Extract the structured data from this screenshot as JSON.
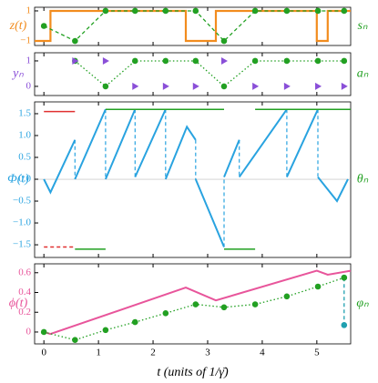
{
  "chart_data": [
    {
      "type": "line",
      "ylabel": "z(t)",
      "ylabel_color": "#f28c1e",
      "y2label": "sₙ",
      "y2label_color": "#22a022",
      "xlim": [
        -0.17,
        5.62
      ],
      "ylim": [
        -1.3,
        1.24
      ],
      "yticks": [
        1,
        {
          "value": -1,
          "label": "−1"
        }
      ],
      "series": [
        {
          "color": "#f28c1e",
          "style": "solid",
          "width": 2.2,
          "x": [
            -0.17,
            0.12,
            0.12,
            2.6,
            2.6,
            3.15,
            3.15,
            5.0,
            5.0,
            5.2,
            5.2,
            5.62
          ],
          "values": [
            -1,
            -1,
            1,
            1,
            -1,
            -1,
            1,
            1,
            -1,
            -1,
            1,
            1
          ]
        },
        {
          "color": "#22a022",
          "style": "dashed",
          "marker": "circle",
          "x": [
            0,
            0.57,
            1.13,
            1.67,
            2.23,
            2.78,
            3.3,
            3.87,
            4.45,
            5.02,
            5.5
          ],
          "values": [
            0,
            -1,
            1,
            1,
            1,
            1,
            -1,
            1,
            1,
            1,
            1
          ]
        }
      ]
    },
    {
      "type": "line",
      "ylabel": "yₙ",
      "ylabel_color": "#8a4fd8",
      "y2label": "aₙ",
      "y2label_color": "#22a022",
      "xlim": [
        -0.17,
        5.62
      ],
      "ylim": [
        -0.36,
        1.32
      ],
      "yticks": [
        1,
        0
      ],
      "series": [
        {
          "color": "#22a022",
          "style": "dotted",
          "marker": "circle",
          "x": [
            0.57,
            1.13,
            1.67,
            2.23,
            2.78,
            3.3,
            3.87,
            4.45,
            5.02,
            5.5
          ],
          "values": [
            1,
            0,
            1,
            1,
            1,
            0,
            1,
            1,
            1,
            1
          ]
        },
        {
          "color": "#8a4fd8",
          "style": "none",
          "marker": "triangle",
          "x": [
            0.57,
            1.13,
            1.67,
            2.23,
            2.78,
            3.3,
            3.87,
            4.45,
            5.02,
            5.5
          ],
          "values": [
            1,
            1,
            0,
            0,
            0,
            1,
            0,
            0,
            0,
            0
          ]
        }
      ]
    },
    {
      "type": "line",
      "ylabel": "Φ(t)",
      "ylabel_color": "#29a3e0",
      "y2label": "θₙ",
      "y2label_color": "#22a022",
      "xlim": [
        -0.17,
        5.62
      ],
      "ylim": [
        -1.79,
        1.77
      ],
      "yticks": [
        1.5,
        {
          "value": 1,
          "label": "1.0"
        },
        0.5,
        {
          "value": 0,
          "label": "0.0"
        },
        {
          "value": -0.5,
          "label": "−0.5"
        },
        {
          "value": -1,
          "label": "−1.0"
        },
        {
          "value": -1.5,
          "label": "−1.5"
        }
      ],
      "zero_line": true,
      "series": [
        {
          "color": "#29a3e0",
          "style": "solid",
          "width": 2,
          "x": [
            0,
            0.12,
            0.57,
            null,
            0.57,
            1.13,
            null,
            1.13,
            1.67,
            null,
            1.67,
            2.23,
            null,
            2.23,
            2.62,
            2.78,
            null,
            2.78,
            3.3,
            null,
            3.3,
            3.58,
            null,
            3.58,
            4.45,
            null,
            4.45,
            5.02,
            null,
            5.02,
            5.37,
            5.57
          ],
          "values": [
            0,
            -0.3,
            0.9,
            null,
            0,
            1.6,
            null,
            0,
            1.6,
            null,
            0.05,
            1.6,
            null,
            0,
            1.2,
            0.9,
            null,
            0,
            -1.55,
            null,
            0.05,
            0.9,
            null,
            0.05,
            1.6,
            null,
            0.05,
            1.6,
            null,
            0.05,
            -0.5,
            0
          ]
        },
        {
          "color": "#29a3e0",
          "style": "dashed",
          "width": 1.2,
          "x": [
            0.57,
            0.57,
            null,
            1.13,
            1.13,
            null,
            1.67,
            1.67,
            null,
            2.23,
            2.23,
            null,
            2.78,
            2.78,
            null,
            3.3,
            3.3,
            null,
            3.58,
            3.58,
            null,
            4.45,
            4.45,
            null,
            5.02,
            5.02
          ],
          "values": [
            0.9,
            0,
            null,
            1.6,
            0,
            null,
            1.6,
            0.05,
            null,
            1.6,
            0,
            null,
            0.9,
            0,
            null,
            -1.55,
            0.05,
            null,
            0.9,
            0.05,
            null,
            1.6,
            0.05,
            null,
            1.6,
            0.05
          ]
        },
        {
          "color": "#22a022",
          "style": "solid",
          "width": 1.5,
          "x": [
            0.57,
            1.13,
            null,
            1.13,
            3.3,
            null,
            3.3,
            3.87,
            null,
            3.87,
            5.62
          ],
          "values": [
            -1.6,
            -1.6,
            null,
            1.6,
            1.6,
            null,
            -1.6,
            -1.6,
            null,
            1.6,
            1.6
          ]
        },
        {
          "color": "#e03030",
          "style": "solid",
          "width": 1.5,
          "x": [
            0,
            0.57
          ],
          "values": [
            1.55,
            1.55
          ]
        },
        {
          "color": "#e03030",
          "style": "dashed",
          "width": 1.5,
          "x": [
            0,
            0.57
          ],
          "values": [
            -1.55,
            -1.55
          ]
        }
      ]
    },
    {
      "type": "line",
      "ylabel": "ϕ(t)",
      "ylabel_color": "#e8559b",
      "y2label": "φₙ",
      "y2label_color": "#22a022",
      "xlabel": "t (units of 1/γ̄)",
      "xlim": [
        -0.17,
        5.62
      ],
      "ylim": [
        -0.12,
        0.69
      ],
      "xticks": [
        0,
        1,
        2,
        3,
        4,
        5
      ],
      "yticks": [
        0.6,
        0.4,
        0.2,
        0
      ],
      "series": [
        {
          "color": "#e8559b",
          "style": "solid",
          "width": 2,
          "x": [
            0,
            0.12,
            2.6,
            3.15,
            5.0,
            5.2,
            5.62
          ],
          "values": [
            0,
            -0.02,
            0.45,
            0.32,
            0.62,
            0.58,
            0.62
          ]
        },
        {
          "color": "#20a0b0",
          "style": "dashed",
          "marker": "circle",
          "x": [
            5.5,
            5.5
          ],
          "values": [
            0.55,
            0.07
          ]
        },
        {
          "color": "#22a022",
          "style": "dotted",
          "marker": "circle",
          "x": [
            0,
            0.57,
            1.13,
            1.67,
            2.23,
            2.78,
            3.3,
            3.87,
            4.45,
            5.02,
            5.5
          ],
          "values": [
            0,
            -0.08,
            0.02,
            0.1,
            0.19,
            0.28,
            0.25,
            0.28,
            0.36,
            0.46,
            0.55
          ]
        }
      ]
    }
  ]
}
